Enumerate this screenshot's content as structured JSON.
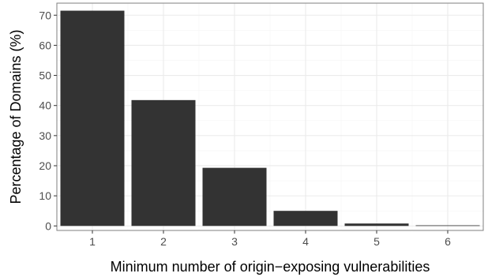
{
  "chart_data": {
    "type": "bar",
    "title": "",
    "xlabel": "Minimum number of origin−exposing vulnerabilities",
    "ylabel": "Percentage of Domains (%)",
    "categories": [
      "1",
      "2",
      "3",
      "4",
      "5",
      "6"
    ],
    "values": [
      71.5,
      41.8,
      19.3,
      5.0,
      0.8,
      0.2
    ],
    "ylim": [
      -1.5,
      74
    ],
    "yticks": [
      0,
      10,
      20,
      30,
      40,
      50,
      60,
      70
    ],
    "grid": true,
    "legend": "none",
    "bar_color": "#333333",
    "panel_border_color": "#7f7f7f",
    "major_grid_color": "#ebebeb",
    "minor_grid_color": "#f5f5f5"
  }
}
